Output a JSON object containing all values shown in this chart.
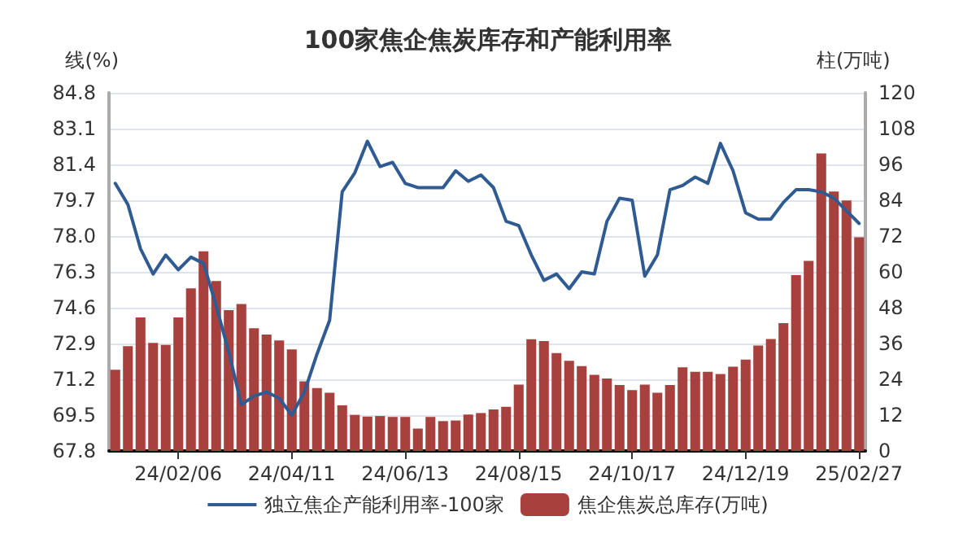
{
  "chart_data": {
    "type": "bar",
    "title": "100家焦企焦炭库存和产能利用率",
    "ylabel": "线(%)",
    "y2label": "柱(万吨)",
    "categories": [
      null,
      null,
      null,
      null,
      null,
      "24/02/06",
      null,
      null,
      null,
      null,
      null,
      null,
      null,
      null,
      "24/04/11",
      null,
      null,
      null,
      null,
      null,
      null,
      null,
      null,
      "24/06/13",
      null,
      null,
      null,
      null,
      null,
      null,
      null,
      null,
      "24/08/15",
      null,
      null,
      null,
      null,
      null,
      null,
      null,
      null,
      "24/10/17",
      null,
      null,
      null,
      null,
      null,
      null,
      null,
      null,
      "24/12/19",
      null,
      null,
      null,
      null,
      null,
      null,
      null,
      null,
      "25/02/27"
    ],
    "series": [
      {
        "name": "独立焦企产能利用率-100家",
        "type": "line",
        "color": "#2f5b92",
        "values": [
          80.5,
          79.5,
          77.4,
          76.2,
          77.1,
          76.4,
          77.0,
          76.7,
          74.7,
          72.5,
          70.0,
          70.4,
          70.6,
          70.3,
          69.5,
          70.6,
          72.4,
          74.0,
          80.1,
          81.0,
          82.5,
          81.3,
          81.5,
          80.5,
          80.3,
          80.3,
          80.3,
          81.1,
          80.6,
          80.9,
          80.3,
          78.7,
          78.5,
          77.1,
          75.9,
          76.2,
          75.5,
          76.3,
          76.2,
          78.7,
          79.8,
          79.7,
          76.1,
          77.1,
          80.2,
          80.4,
          80.8,
          80.5,
          82.4,
          81.1,
          79.1,
          78.8,
          78.8,
          79.6,
          80.2,
          80.2,
          80.1,
          79.8,
          79.2,
          78.6
        ]
      },
      {
        "name": "焦企焦炭总库存(万吨)",
        "axis": "y2",
        "color": "#a8403d",
        "values": [
          27.2,
          35.1,
          44.7,
          36.2,
          35.5,
          44.7,
          54.5,
          66.9,
          56.9,
          47.2,
          49.2,
          41.1,
          39.0,
          37.0,
          34.0,
          23.3,
          21.1,
          19.5,
          15.3,
          12.1,
          11.5,
          11.7,
          11.4,
          11.4,
          7.5,
          11.4,
          10.0,
          10.2,
          12.2,
          12.7,
          13.9,
          14.8,
          22.2,
          37.4,
          36.8,
          32.8,
          30.2,
          28.4,
          25.5,
          24.3,
          22.1,
          20.4,
          22.2,
          19.5,
          22.1,
          28.0,
          26.5,
          26.5,
          25.8,
          28.2,
          30.6,
          35.3,
          37.5,
          42.8,
          58.9,
          63.7,
          99.7,
          86.9,
          83.9,
          71.6
        ]
      }
    ],
    "ylim": [
      67.8,
      84.8
    ],
    "yticks": [
      67.8,
      69.5,
      71.2,
      72.9,
      74.6,
      76.3,
      {
        "value": 78,
        "label": "78.0"
      },
      79.7,
      81.4,
      83.1,
      84.8
    ],
    "y2lim": [
      0,
      120
    ],
    "y2ticks": [
      0,
      12,
      24,
      36,
      48,
      60,
      72,
      84,
      96,
      108,
      120
    ],
    "grid": "y",
    "legend": "bottom",
    "marker": "none",
    "line_style": "solid"
  }
}
